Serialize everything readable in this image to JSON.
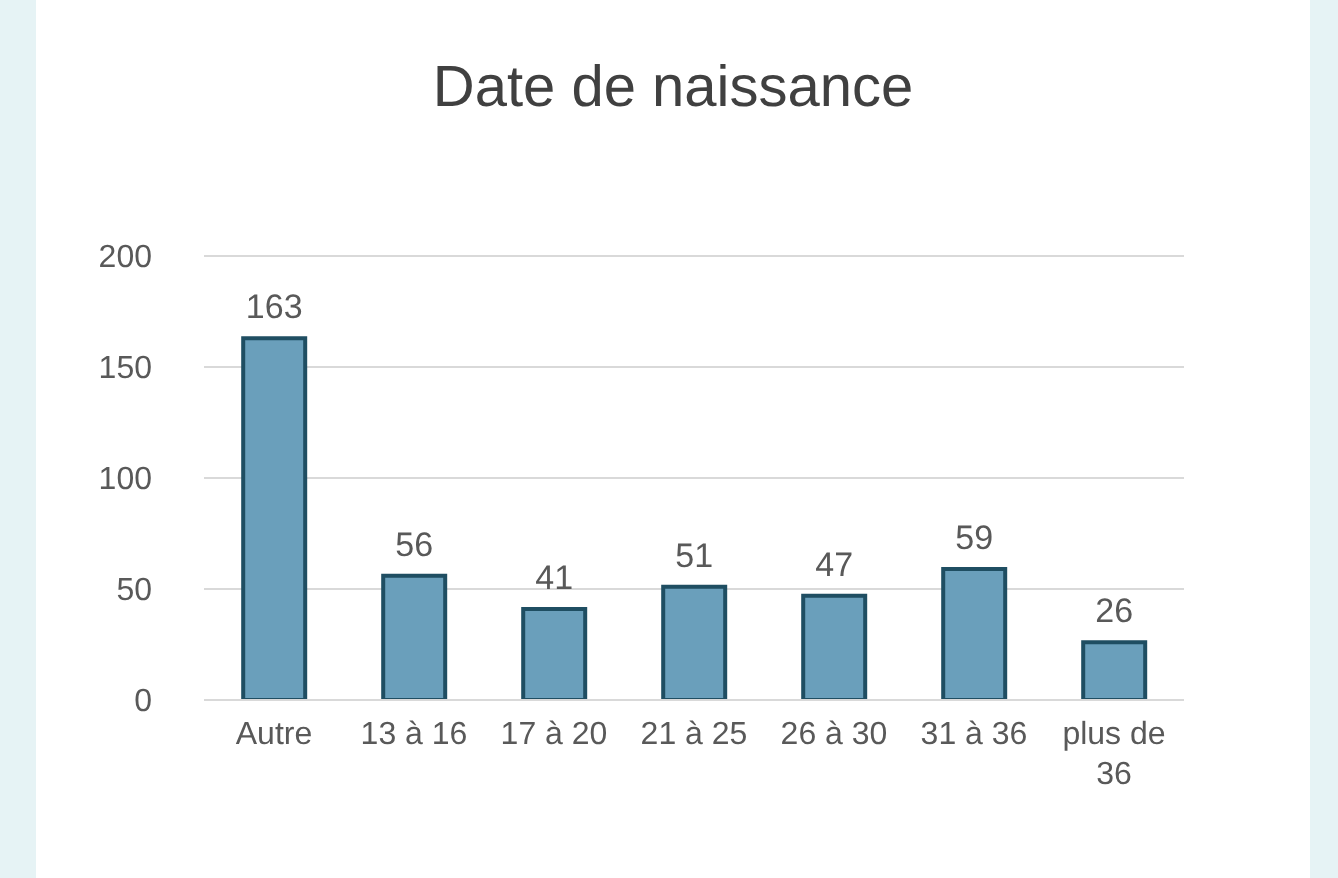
{
  "chart_data": {
    "type": "bar",
    "title": "Date de naissance",
    "categories": [
      "Autre",
      "13 à 16",
      "17 à 20",
      "21 à 25",
      "26 à 30",
      "31 à 36",
      "plus de 36"
    ],
    "values": [
      163,
      56,
      41,
      51,
      47,
      59,
      26
    ],
    "color": "#6a9fbb",
    "ylim": [
      0,
      200
    ],
    "yticks": [
      0,
      50,
      100,
      150,
      200
    ],
    "grid": "y",
    "data_labels": true
  }
}
